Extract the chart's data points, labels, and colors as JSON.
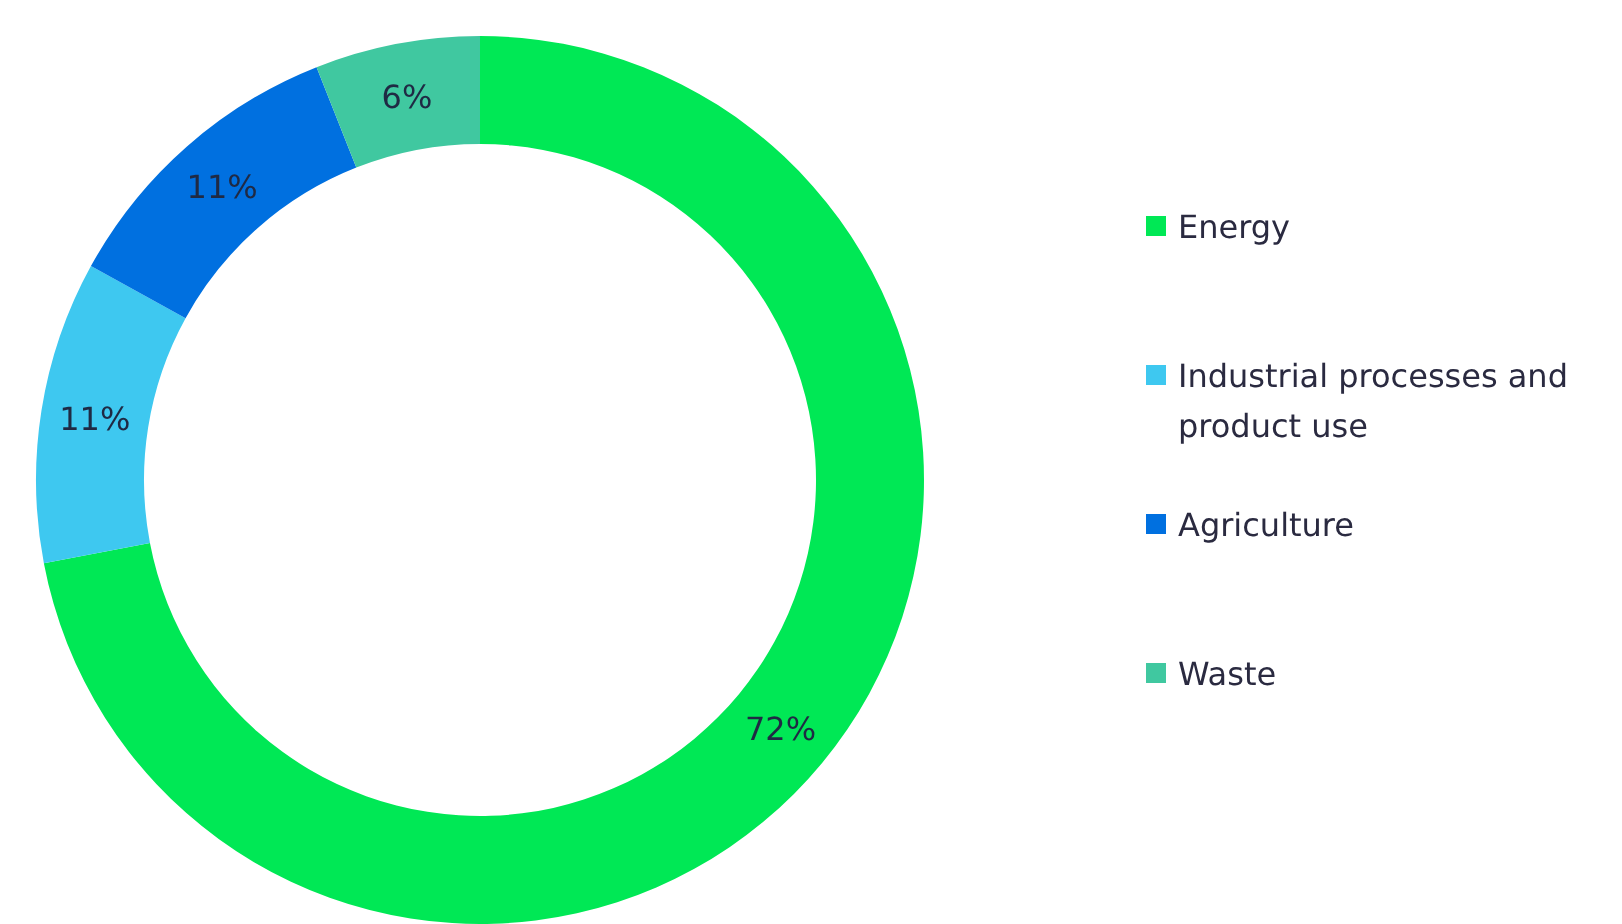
{
  "chart_data": {
    "type": "donut",
    "categories": [
      "Energy",
      "Industrial processes and product use",
      "Agriculture",
      "Waste"
    ],
    "values": [
      72,
      11,
      11,
      6
    ],
    "colors": [
      "#00e855",
      "#3ec8f0",
      "#0070e0",
      "#40c8a0"
    ],
    "value_labels": [
      "72%",
      "11%",
      "11%",
      "6%"
    ],
    "legend": "right"
  }
}
